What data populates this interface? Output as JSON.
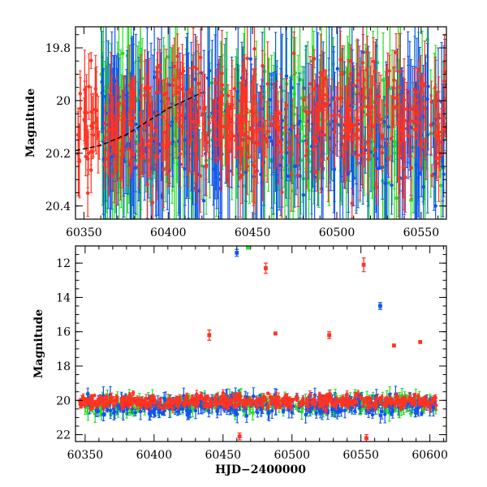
{
  "chart_data": [
    {
      "type": "scatter",
      "title": "",
      "xlabel": "",
      "ylabel": "Magnitude",
      "xlim": [
        60345,
        60565
      ],
      "ylim": [
        20.45,
        19.72
      ],
      "y_inverted": true,
      "grid": false,
      "legend": "none",
      "xticks": [
        60350,
        60400,
        60450,
        60500,
        60550
      ],
      "yticks": [
        19.8,
        20,
        20.2,
        20.4
      ],
      "model_curve": {
        "color": "#000000",
        "x": [
          60345,
          60360,
          60375,
          60390,
          60400,
          60410,
          60420
        ],
        "y": [
          20.19,
          20.17,
          20.13,
          20.07,
          20.03,
          20.0,
          19.97
        ]
      },
      "series": [
        {
          "name": "",
          "color": "#22dd22",
          "x_range": [
            60360,
            60565
          ],
          "y_mean": 20.1,
          "y_spread": 0.2,
          "err_mean": 0.2,
          "n_points": 300
        },
        {
          "name": "",
          "color": "#1155ee",
          "x_range": [
            60360,
            60565
          ],
          "y_mean": 20.12,
          "y_spread": 0.2,
          "err_mean": 0.22,
          "n_points": 320
        },
        {
          "name": "",
          "color": "#ff3322",
          "x_range": [
            60346,
            60565
          ],
          "y_mean": 20.08,
          "y_spread": 0.18,
          "err_mean": 0.1,
          "n_points": 460
        }
      ]
    },
    {
      "type": "scatter",
      "title": "",
      "xlabel": "HJD−2400000",
      "ylabel": "Magnitude",
      "xlim": [
        60343,
        60612
      ],
      "ylim": [
        22.4,
        11.0
      ],
      "y_inverted": true,
      "grid": false,
      "legend": "none",
      "xticks": [
        60350,
        60400,
        60450,
        60500,
        60550,
        60600
      ],
      "yticks": [
        12,
        14,
        16,
        18,
        20,
        22
      ],
      "series": [
        {
          "name": "",
          "color": "#22dd22",
          "x_range": [
            60350,
            60605
          ],
          "y_mean": 20.25,
          "y_spread": 0.45,
          "err_mean": 0.3,
          "n_points": 300
        },
        {
          "name": "",
          "color": "#1155ee",
          "x_range": [
            60350,
            60605
          ],
          "y_mean": 20.3,
          "y_spread": 0.45,
          "err_mean": 0.3,
          "n_points": 320
        },
        {
          "name": "",
          "color": "#ff3322",
          "x_range": [
            60346,
            60605
          ],
          "y_mean": 20.05,
          "y_spread": 0.3,
          "err_mean": 0.15,
          "n_points": 520
        }
      ],
      "notable_points": [
        {
          "x": 60460,
          "y": 11.4,
          "err": 0.2,
          "color": "#1155ee"
        },
        {
          "x": 60468,
          "y": 11.1,
          "err": 0.0,
          "color": "#22dd22"
        },
        {
          "x": 60481,
          "y": 12.3,
          "err": 0.3,
          "color": "#ff3322"
        },
        {
          "x": 60552,
          "y": 12.1,
          "err": 0.4,
          "color": "#ff3322"
        },
        {
          "x": 60564,
          "y": 14.5,
          "err": 0.2,
          "color": "#1155ee"
        },
        {
          "x": 60440,
          "y": 16.2,
          "err": 0.3,
          "color": "#ff3322"
        },
        {
          "x": 60527,
          "y": 16.2,
          "err": 0.2,
          "color": "#ff3322"
        },
        {
          "x": 60488,
          "y": 16.1,
          "err": 0.0,
          "color": "#ff3322"
        },
        {
          "x": 60574,
          "y": 16.8,
          "err": 0.0,
          "color": "#ff3322"
        },
        {
          "x": 60593,
          "y": 16.6,
          "err": 0.0,
          "color": "#ff3322"
        },
        {
          "x": 60554,
          "y": 22.2,
          "err": 0.2,
          "color": "#ff3322"
        },
        {
          "x": 60462,
          "y": 22.1,
          "err": 0.2,
          "color": "#ff3322"
        }
      ]
    }
  ]
}
